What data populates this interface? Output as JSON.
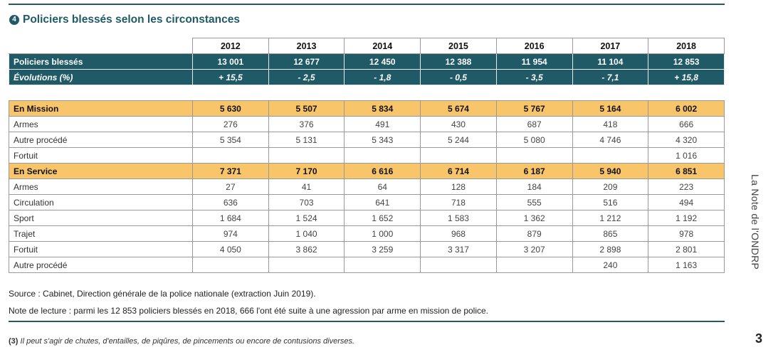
{
  "title": {
    "badge": "4",
    "text": "Policiers blessés selon les circonstances"
  },
  "years": [
    "2012",
    "2013",
    "2014",
    "2015",
    "2016",
    "2017",
    "2018"
  ],
  "summary_rows": [
    {
      "label": "Policiers blessés",
      "values": [
        "13 001",
        "12 677",
        "12 450",
        "12 388",
        "11 954",
        "11 104",
        "12 853"
      ]
    },
    {
      "label": "Évolutions (%)",
      "values": [
        "+ 15,5",
        "- 2,5",
        "- 1,8",
        "- 0,5",
        "- 3,5",
        "- 7,1",
        "+ 15,8"
      ]
    }
  ],
  "detail_rows": [
    {
      "label": "En Mission",
      "values": [
        "5 630",
        "5 507",
        "5 834",
        "5 674",
        "5 767",
        "5 164",
        "6 002"
      ],
      "kind": "gold"
    },
    {
      "label": "Armes",
      "values": [
        "276",
        "376",
        "491",
        "430",
        "687",
        "418",
        "666"
      ],
      "kind": "plain"
    },
    {
      "label": "Autre procédé",
      "values": [
        "5 354",
        "5 131",
        "5 343",
        "5 244",
        "5 080",
        "4 746",
        "4 320"
      ],
      "kind": "plain"
    },
    {
      "label": "Fortuit",
      "values": [
        "",
        "",
        "",
        "",
        "",
        "",
        "1 016"
      ],
      "kind": "plain"
    },
    {
      "label": "En Service",
      "values": [
        "7 371",
        "7 170",
        "6 616",
        "6 714",
        "6 187",
        "5 940",
        "6 851"
      ],
      "kind": "gold"
    },
    {
      "label": "Armes",
      "values": [
        "27",
        "41",
        "64",
        "128",
        "184",
        "209",
        "223"
      ],
      "kind": "plain"
    },
    {
      "label": "Circulation",
      "values": [
        "636",
        "703",
        "641",
        "718",
        "555",
        "516",
        "494"
      ],
      "kind": "plain"
    },
    {
      "label": "Sport",
      "values": [
        "1 684",
        "1 524",
        "1 652",
        "1 583",
        "1 362",
        "1 212",
        "1 192"
      ],
      "kind": "plain"
    },
    {
      "label": "Trajet",
      "values": [
        "974",
        "1 040",
        "1 000",
        "968",
        "879",
        "865",
        "978"
      ],
      "kind": "plain"
    },
    {
      "label": "Fortuit",
      "values": [
        "4 050",
        "3 862",
        "3 259",
        "3 317",
        "3 207",
        "2 898",
        "2 801"
      ],
      "kind": "plain"
    },
    {
      "label": "Autre procédé",
      "values": [
        "",
        "",
        "",
        "",
        "",
        "240",
        "1 163"
      ],
      "kind": "plain"
    }
  ],
  "source": "Source : Cabinet, Direction générale de la police nationale (extraction Juin 2019).",
  "note": "Note de lecture : parmi les 12 853 policiers blessés en 2018, 666 l'ont été suite à une agression par arme en mission de police.",
  "footnote": {
    "number": "(3)",
    "text": "Il peut s'agir de chutes, d'entailles, de piqûres, de pincements ou encore de contusions diverses."
  },
  "side_label": "La Note de l'ONDRP",
  "page_number": "3",
  "colors": {
    "teal": "#1f5a66",
    "gold": "#f8c56a"
  }
}
